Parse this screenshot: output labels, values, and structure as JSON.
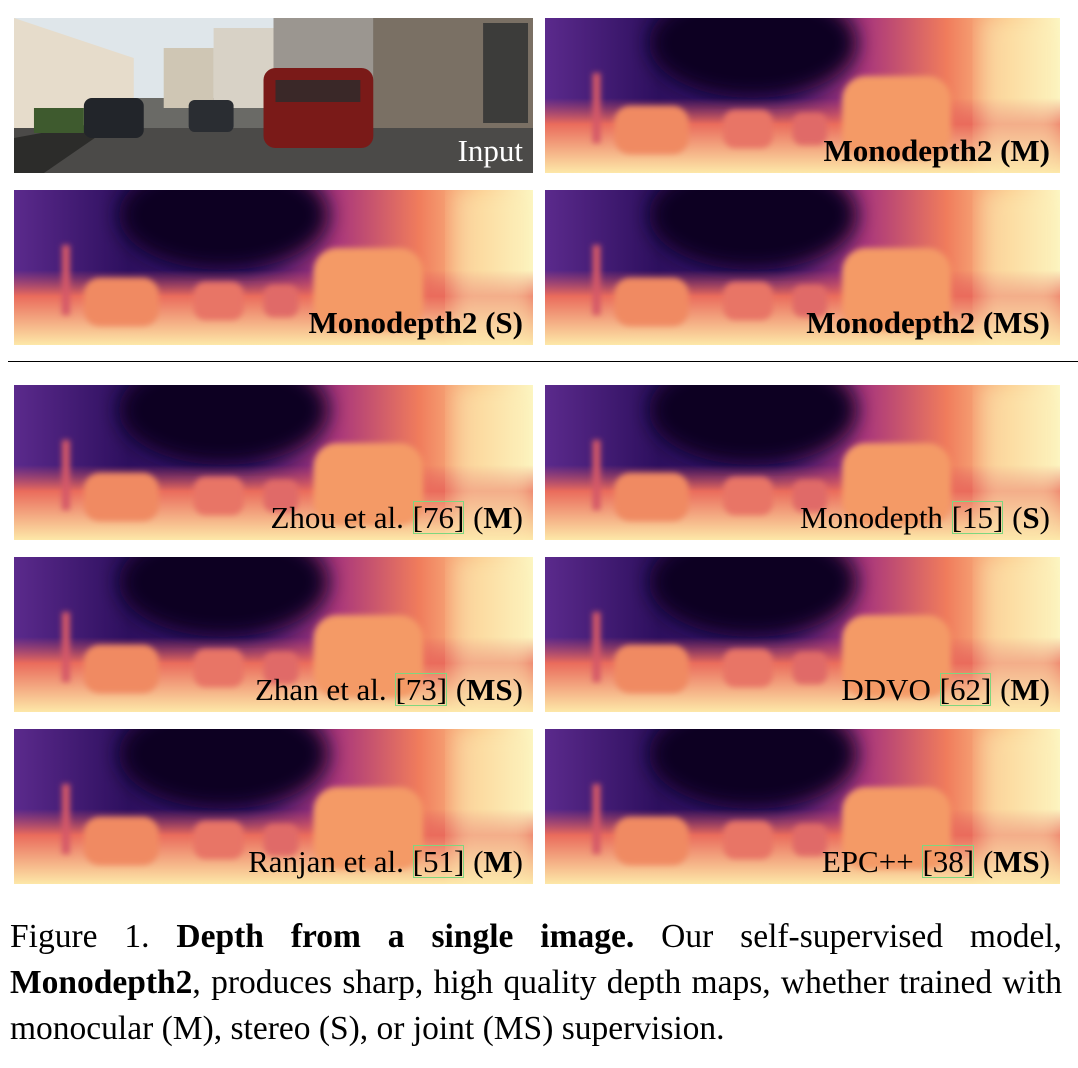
{
  "figure": {
    "panels": [
      {
        "kind": "input",
        "label": [
          {
            "t": "Input"
          }
        ]
      },
      {
        "kind": "depth",
        "label": [
          {
            "t": "Monodepth2 (M)",
            "b": true
          }
        ]
      },
      {
        "kind": "depth",
        "label": [
          {
            "t": "Monodepth2 (S)",
            "b": true
          }
        ]
      },
      {
        "kind": "depth",
        "label": [
          {
            "t": "Monodepth2 (MS)",
            "b": true
          }
        ]
      },
      {
        "kind": "depth",
        "label": [
          {
            "t": "Zhou et al. "
          },
          {
            "t": "[76]",
            "cite": true
          },
          {
            "t": " ("
          },
          {
            "t": "M",
            "b": true
          },
          {
            "t": ")"
          }
        ]
      },
      {
        "kind": "depth",
        "label": [
          {
            "t": "Monodepth "
          },
          {
            "t": "[15]",
            "cite": true
          },
          {
            "t": " ("
          },
          {
            "t": "S",
            "b": true
          },
          {
            "t": ")"
          }
        ]
      },
      {
        "kind": "depth",
        "label": [
          {
            "t": "Zhan et al. "
          },
          {
            "t": "[73]",
            "cite": true
          },
          {
            "t": " ("
          },
          {
            "t": "MS",
            "b": true
          },
          {
            "t": ")"
          }
        ]
      },
      {
        "kind": "depth",
        "label": [
          {
            "t": "DDVO "
          },
          {
            "t": "[62]",
            "cite": true
          },
          {
            "t": " ("
          },
          {
            "t": "M",
            "b": true
          },
          {
            "t": ")"
          }
        ]
      },
      {
        "kind": "depth",
        "label": [
          {
            "t": "Ranjan et al. "
          },
          {
            "t": "[51]",
            "cite": true
          },
          {
            "t": " ("
          },
          {
            "t": "M",
            "b": true
          },
          {
            "t": ")"
          }
        ]
      },
      {
        "kind": "depth",
        "label": [
          {
            "t": "EPC++ "
          },
          {
            "t": "[38]",
            "cite": true
          },
          {
            "t": " ("
          },
          {
            "t": "MS",
            "b": true
          },
          {
            "t": ")"
          }
        ]
      }
    ],
    "caption": [
      {
        "t": "Figure 1. "
      },
      {
        "t": "Depth from a single image.",
        "b": true
      },
      {
        "t": " Our self-supervised model, "
      },
      {
        "t": "Monodepth2",
        "b": true
      },
      {
        "t": ", produces sharp, high quality depth maps, whether trained with monocular (M), stereo (S), or joint (MS) supervision."
      }
    ]
  }
}
